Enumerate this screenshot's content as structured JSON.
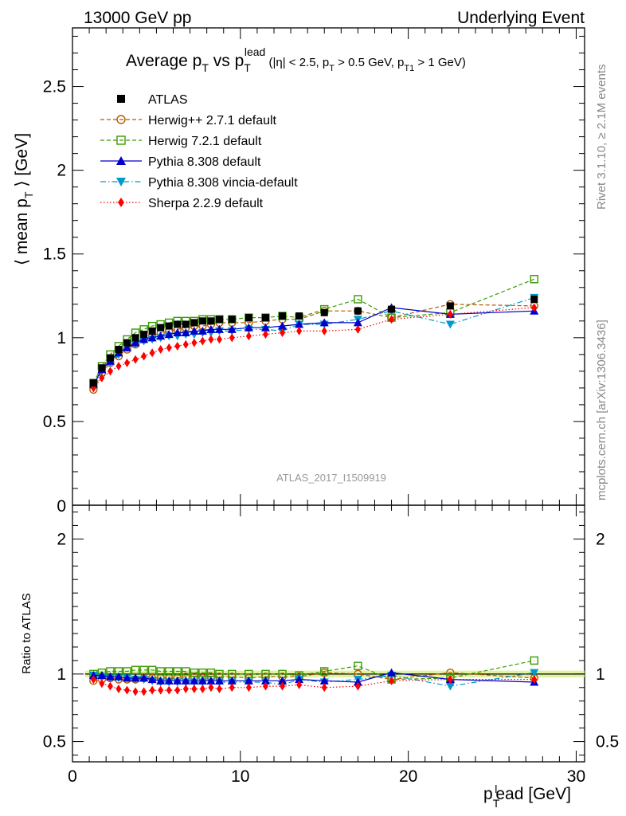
{
  "header": {
    "left": "13000 GeV pp",
    "right": "Underlying Event"
  },
  "title": {
    "main": "Average p",
    "main_sub": "T",
    "vs": " vs p",
    "vs_sub": "T",
    "vs_sup": "lead",
    "cuts_open": " (|η| < 2.5, p",
    "cuts_sub1": "T",
    "cuts_mid": " > 0.5 GeV, p",
    "cuts_sub2": "T1",
    "cuts_close": " > 1 GeV)"
  },
  "side_labels": {
    "rivet": "Rivet 3.1.10, ≥ 2.1M events",
    "mcplots": "mcplots.cern.ch [arXiv:1306.3436]"
  },
  "watermark": "ATLAS_2017_I1509919",
  "axes": {
    "ylabel_main": "⟨ mean p",
    "ylabel_main_sub": "T",
    "ylabel_main_close": " ⟩ [GeV]",
    "ylabel_ratio": "Ratio to ATLAS",
    "xlabel_p": "p",
    "xlabel_sub": "T",
    "xlabel_sup": "l",
    "xlabel_rest": "ead [GeV]"
  },
  "colors": {
    "ATLAS": "#000000",
    "Herwig++ 2.7.1 default": "#b35900",
    "Herwig 7.2.1 default": "#3a9a00",
    "Pythia 8.308 default": "#0000cc",
    "Pythia 8.308 vincia-default": "#0099cc",
    "Sherpa 2.2.9 default": "#ff0000",
    "band": "#d8f08c"
  },
  "chart_data": [
    {
      "type": "scatter",
      "panel": "main",
      "xlim": [
        0,
        30.5
      ],
      "ylim": [
        0,
        2.85
      ],
      "x_ticks": [
        0,
        10,
        20,
        30
      ],
      "y_ticks": [
        0.5,
        1,
        1.5,
        2,
        2.5
      ],
      "y_ticks_labels": [
        "0.5",
        "1",
        "1.5",
        "2",
        "2.5"
      ],
      "y_zero_label": "0",
      "x": [
        1.25,
        1.75,
        2.25,
        2.75,
        3.25,
        3.75,
        4.25,
        4.75,
        5.25,
        5.75,
        6.25,
        6.75,
        7.25,
        7.75,
        8.25,
        8.75,
        9.5,
        10.5,
        11.5,
        12.5,
        13.5,
        15,
        17,
        19,
        22.5,
        27.5
      ],
      "series": [
        {
          "name": "ATLAS",
          "marker": "square-filled",
          "line": "none",
          "values": [
            0.73,
            0.82,
            0.88,
            0.93,
            0.97,
            1.0,
            1.02,
            1.04,
            1.06,
            1.07,
            1.08,
            1.08,
            1.09,
            1.1,
            1.1,
            1.11,
            1.11,
            1.12,
            1.12,
            1.13,
            1.13,
            1.15,
            1.16,
            1.17,
            1.19,
            1.23
          ]
        },
        {
          "name": "Herwig++ 2.7.1 default",
          "marker": "circle-open",
          "line": "dashed",
          "values": [
            0.69,
            0.79,
            0.85,
            0.89,
            0.93,
            0.96,
            0.99,
            1.01,
            1.03,
            1.04,
            1.05,
            1.06,
            1.07,
            1.07,
            1.08,
            1.09,
            1.09,
            1.09,
            1.1,
            1.11,
            1.11,
            1.16,
            1.16,
            1.12,
            1.2,
            1.19
          ]
        },
        {
          "name": "Herwig 7.2.1 default",
          "marker": "square-open",
          "line": "dashed",
          "values": [
            0.73,
            0.83,
            0.9,
            0.95,
            0.99,
            1.03,
            1.05,
            1.07,
            1.08,
            1.09,
            1.1,
            1.1,
            1.1,
            1.11,
            1.11,
            1.11,
            1.11,
            1.12,
            1.12,
            1.13,
            1.12,
            1.17,
            1.23,
            1.12,
            1.15,
            1.35
          ]
        },
        {
          "name": "Pythia 8.308 default",
          "marker": "triangle-up-filled",
          "line": "solid",
          "values": [
            0.72,
            0.81,
            0.86,
            0.91,
            0.94,
            0.97,
            0.99,
            1.0,
            1.01,
            1.02,
            1.03,
            1.03,
            1.04,
            1.04,
            1.05,
            1.05,
            1.05,
            1.06,
            1.06,
            1.07,
            1.08,
            1.09,
            1.09,
            1.18,
            1.14,
            1.16
          ]
        },
        {
          "name": "Pythia 8.308 vincia-default",
          "marker": "triangle-down-filled",
          "line": "dashdot",
          "values": [
            0.72,
            0.8,
            0.85,
            0.9,
            0.94,
            0.96,
            0.98,
            0.99,
            1.0,
            1.01,
            1.01,
            1.02,
            1.02,
            1.03,
            1.03,
            1.04,
            1.04,
            1.05,
            1.05,
            1.04,
            1.08,
            1.08,
            1.11,
            1.16,
            1.08,
            1.24
          ]
        },
        {
          "name": "Sherpa 2.2.9 default",
          "marker": "diamond-filled",
          "line": "dotted",
          "values": [
            0.7,
            0.76,
            0.8,
            0.83,
            0.85,
            0.87,
            0.89,
            0.91,
            0.93,
            0.94,
            0.95,
            0.96,
            0.97,
            0.98,
            0.99,
            0.99,
            1.0,
            1.01,
            1.02,
            1.03,
            1.04,
            1.04,
            1.05,
            1.11,
            1.14,
            1.18
          ]
        }
      ]
    },
    {
      "type": "scatter",
      "panel": "ratio",
      "xlim": [
        0,
        30.5
      ],
      "ylim": [
        0.35,
        2.25
      ],
      "x_ticks": [
        0,
        10,
        20,
        30
      ],
      "x_tick_labels": [
        "0",
        "10",
        "20",
        "30"
      ],
      "y_ticks": [
        0.5,
        1,
        2
      ],
      "y_ticks_labels": [
        "0.5",
        "1",
        "2"
      ],
      "x": [
        1.25,
        1.75,
        2.25,
        2.75,
        3.25,
        3.75,
        4.25,
        4.75,
        5.25,
        5.75,
        6.25,
        6.75,
        7.25,
        7.75,
        8.25,
        8.75,
        9.5,
        10.5,
        11.5,
        12.5,
        13.5,
        15,
        17,
        19,
        22.5,
        27.5
      ],
      "series": [
        {
          "name": "ATLAS",
          "values": [
            1,
            1,
            1,
            1,
            1,
            1,
            1,
            1,
            1,
            1,
            1,
            1,
            1,
            1,
            1,
            1,
            1,
            1,
            1,
            1,
            1,
            1,
            1,
            1,
            1,
            1
          ]
        },
        {
          "name": "Herwig++ 2.7.1 default",
          "values": [
            0.95,
            0.96,
            0.97,
            0.96,
            0.96,
            0.96,
            0.97,
            0.97,
            0.97,
            0.97,
            0.97,
            0.98,
            0.98,
            0.97,
            0.98,
            0.98,
            0.98,
            0.97,
            0.98,
            0.98,
            0.98,
            1.01,
            1.0,
            0.96,
            1.01,
            0.97
          ]
        },
        {
          "name": "Herwig 7.2.1 default",
          "values": [
            1.0,
            1.01,
            1.02,
            1.02,
            1.02,
            1.03,
            1.03,
            1.03,
            1.02,
            1.02,
            1.02,
            1.02,
            1.01,
            1.01,
            1.01,
            1.0,
            1.0,
            1.0,
            1.0,
            1.0,
            0.99,
            1.02,
            1.06,
            0.96,
            0.97,
            1.1
          ]
        },
        {
          "name": "Pythia 8.308 default",
          "values": [
            0.99,
            0.99,
            0.98,
            0.98,
            0.97,
            0.97,
            0.97,
            0.96,
            0.95,
            0.95,
            0.95,
            0.95,
            0.95,
            0.95,
            0.95,
            0.95,
            0.95,
            0.95,
            0.95,
            0.95,
            0.96,
            0.95,
            0.94,
            1.01,
            0.96,
            0.94
          ]
        },
        {
          "name": "Pythia 8.308 vincia-default",
          "values": [
            0.99,
            0.98,
            0.97,
            0.97,
            0.97,
            0.96,
            0.96,
            0.95,
            0.94,
            0.94,
            0.94,
            0.94,
            0.94,
            0.94,
            0.94,
            0.94,
            0.94,
            0.94,
            0.94,
            0.92,
            0.96,
            0.94,
            0.96,
            0.99,
            0.91,
            1.01
          ]
        },
        {
          "name": "Sherpa 2.2.9 default",
          "values": [
            0.96,
            0.93,
            0.91,
            0.89,
            0.88,
            0.87,
            0.87,
            0.88,
            0.88,
            0.88,
            0.88,
            0.89,
            0.89,
            0.89,
            0.9,
            0.89,
            0.9,
            0.9,
            0.91,
            0.91,
            0.92,
            0.9,
            0.91,
            0.95,
            0.96,
            0.96
          ]
        }
      ]
    }
  ]
}
